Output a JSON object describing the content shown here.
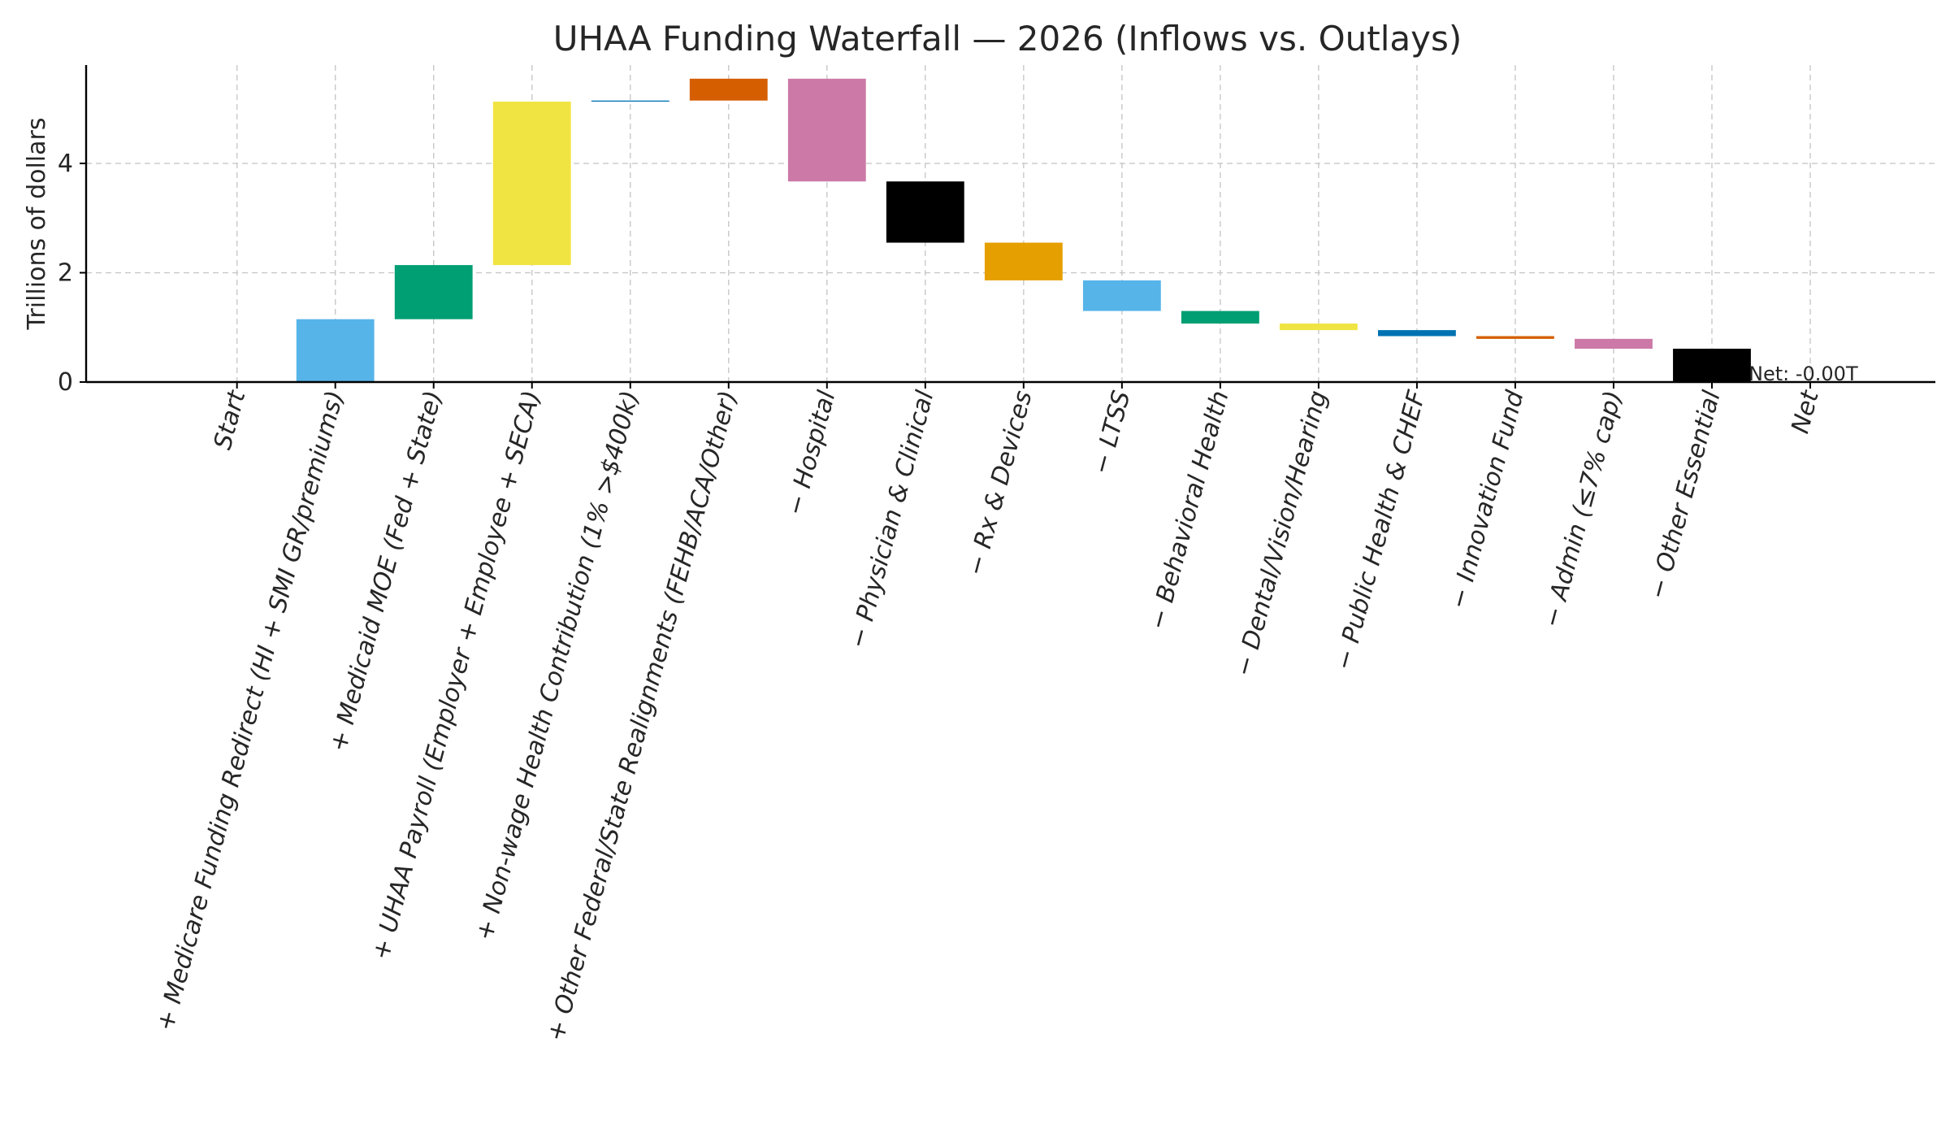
{
  "chart_data": {
    "type": "bar",
    "subtype": "waterfall",
    "title": "UHAA Funding Waterfall — 2026 (Inflows vs. Outlays)",
    "xlabel": "",
    "ylabel": "Trillions of dollars",
    "ylim": [
      0,
      5.8
    ],
    "yticks": [
      0,
      2,
      4
    ],
    "grid": true,
    "categories": [
      "Start",
      "+ Medicare Funding Redirect (HI + SMI GR/premiums)",
      "+ Medicaid MOE (Fed + State)",
      "+ UHAA Payroll (Employer + Employee + SECA)",
      "+ Non-wage Health Contribution (1% >$400k)",
      "+ Other Federal/State Realignments (FEHB/ACA/Other)",
      "− Hospital",
      "− Physician & Clinical",
      "− Rx & Devices",
      "− LTSS",
      "− Behavioral Health",
      "− Dental/Vision/Hearing",
      "− Public Health & CHEF",
      "− Innovation Fund",
      "− Admin (≤7% cap)",
      "− Other Essential",
      "Net"
    ],
    "bars": [
      {
        "from": 0,
        "to": 0,
        "color": "#56B4E9"
      },
      {
        "from": 0,
        "to": 1.15,
        "color": "#56B4E9"
      },
      {
        "from": 1.15,
        "to": 2.14,
        "color": "#009E73"
      },
      {
        "from": 2.14,
        "to": 5.13,
        "color": "#F0E442"
      },
      {
        "from": 5.13,
        "to": 5.15,
        "color": "#0072B2"
      },
      {
        "from": 5.15,
        "to": 5.55,
        "color": "#D55E00"
      },
      {
        "from": 5.55,
        "to": 3.67,
        "color": "#CC79A7"
      },
      {
        "from": 3.67,
        "to": 2.55,
        "color": "#000000"
      },
      {
        "from": 2.55,
        "to": 1.86,
        "color": "#E69F00"
      },
      {
        "from": 1.86,
        "to": 1.3,
        "color": "#56B4E9"
      },
      {
        "from": 1.3,
        "to": 1.07,
        "color": "#009E73"
      },
      {
        "from": 1.07,
        "to": 0.95,
        "color": "#F0E442"
      },
      {
        "from": 0.95,
        "to": 0.84,
        "color": "#0072B2"
      },
      {
        "from": 0.84,
        "to": 0.79,
        "color": "#D55E00"
      },
      {
        "from": 0.79,
        "to": 0.61,
        "color": "#CC79A7"
      },
      {
        "from": 0.61,
        "to": 0.0,
        "color": "#000000"
      },
      {
        "from": 0,
        "to": 0,
        "color": "#56B4E9"
      }
    ],
    "net_label": "Net: -0.00T",
    "net_value": -0.0
  }
}
